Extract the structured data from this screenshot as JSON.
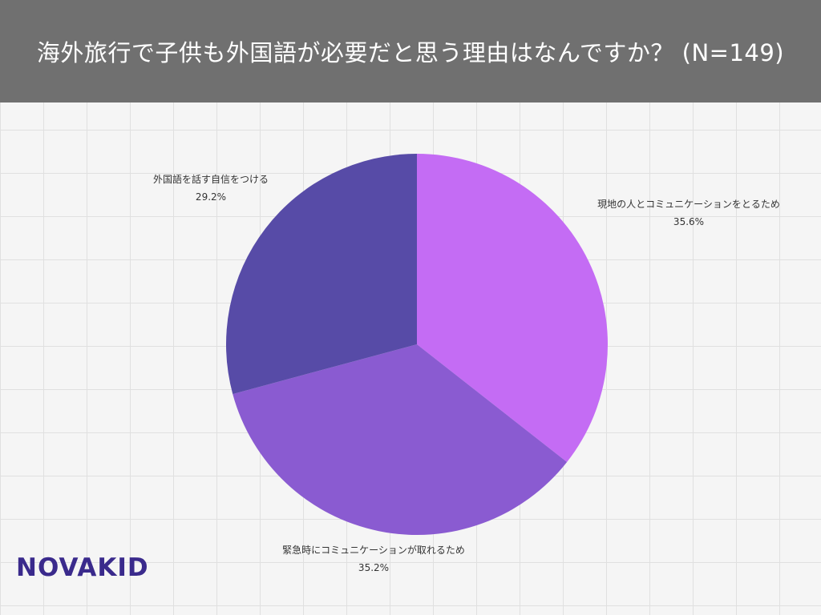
{
  "header": {
    "title": "海外旅行で子供も外国語が必要だと思う理由はなんですか？ (N=149)"
  },
  "chart_data": {
    "type": "pie",
    "start_angle_deg": 0,
    "direction": "clockwise",
    "slices": [
      {
        "label": "現地の人とコミュニケーションをとるため",
        "value": 35.6,
        "value_label": "35.6%",
        "color": "#c46cf4"
      },
      {
        "label": "緊急時にコミュニケーションが取れるため",
        "value": 35.2,
        "value_label": "35.2%",
        "color": "#8a5bd1"
      },
      {
        "label": "外国語を話す自信をつける",
        "value": 29.2,
        "value_label": "29.2%",
        "color": "#574ba7"
      }
    ]
  },
  "logo": {
    "text": "NOVAKID",
    "color": "#3a2a8c"
  }
}
